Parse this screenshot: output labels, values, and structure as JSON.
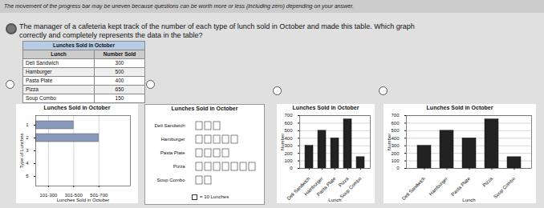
{
  "annotations": [
    "The movement of the progress bar may be uneven because questions can be worth more or less (including zero) depending on your answer.",
    "The manager of a cafeteria kept track of the number of each type of lunch sold in October and made this table. Which graph",
    "correctly and completely represents the data in the table?"
  ],
  "chart_data": [
    {
      "type": "table",
      "title": "Lunches Sold in October",
      "columns": [
        "Lunch",
        "Number Sold"
      ],
      "categories": [
        "Deli Sandwich",
        "Hamburger",
        "Pasta Plate",
        "Pizza",
        "Soup Combo"
      ],
      "values": [
        300,
        500,
        400,
        650,
        150
      ]
    },
    {
      "type": "bar",
      "orientation": "horizontal",
      "title": "Lunches Sold in October",
      "xlabel": "Lunches Sold in October",
      "ylabel": "Type of Lunches",
      "categories": [
        "1",
        "2",
        "3",
        "4",
        "5"
      ],
      "values": [
        300,
        500,
        null,
        null,
        null
      ],
      "color": "#8899bb",
      "xlim": [
        0,
        750
      ],
      "xticks": [
        {
          "value": 101,
          "label": "101-300"
        },
        {
          "value": 301,
          "label": "301-500"
        },
        {
          "value": 501,
          "label": "501-700"
        }
      ],
      "grid": true
    },
    {
      "type": "pictograph",
      "title": "Lunches Sold in October",
      "categories": [
        "Deli Sandwich",
        "Hamburger",
        "Pasta Plate",
        "Pizza",
        "Soup Combo"
      ],
      "values": [
        3,
        5,
        4,
        7,
        2
      ],
      "annotations": [
        "= 10 Lunches"
      ]
    },
    {
      "type": "bar",
      "title": "Lunches Sold in October",
      "xlabel": "Lunch",
      "ylabel": "Number",
      "categories": [
        "Deli Sandwich",
        "Hamburger",
        "Pasta Plate",
        "Pizza",
        "Soup Combo"
      ],
      "values": [
        300,
        500,
        400,
        650,
        150
      ],
      "color": "#222222",
      "ylim": [
        0,
        700
      ],
      "yticks": [
        0,
        100,
        200,
        300,
        400,
        500,
        600,
        700
      ],
      "grid": true
    },
    {
      "type": "bar",
      "title": "Lunches Sold in October",
      "xlabel": "Lunch",
      "ylabel": "Number",
      "categories": [
        "Deli Sandwich",
        "Hamburger",
        "Pasta Plate",
        "Pizza",
        "Soup Combo"
      ],
      "values": [
        300,
        500,
        400,
        650,
        150
      ],
      "color": "#222222",
      "ylim": [
        0,
        700
      ],
      "yticks": [
        0,
        100,
        200,
        300,
        400,
        500,
        600,
        700
      ],
      "grid": true
    }
  ]
}
